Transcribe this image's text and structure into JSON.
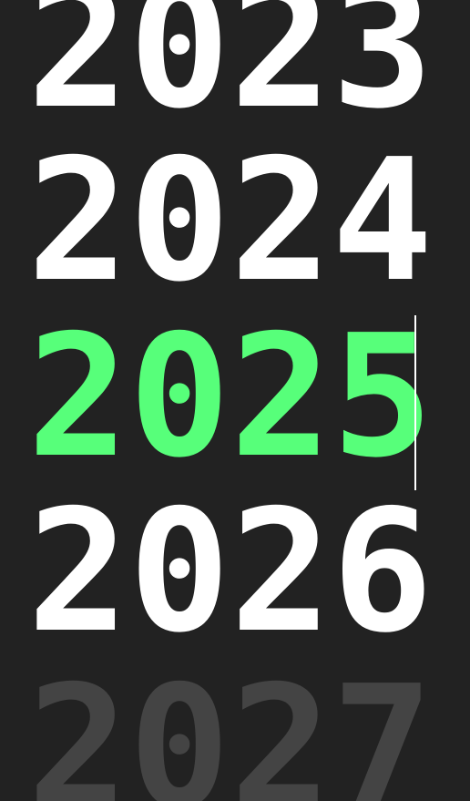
{
  "years": [
    {
      "label": "2023",
      "state": "normal"
    },
    {
      "label": "2024",
      "state": "normal"
    },
    {
      "label": "2025",
      "state": "selected"
    },
    {
      "label": "2026",
      "state": "normal"
    },
    {
      "label": "2027",
      "state": "faded"
    }
  ],
  "colors": {
    "background": "#222222",
    "normal": "#ffffff",
    "selected": "#57ff7a",
    "faded": "#444444",
    "cursor": "#ffffff"
  }
}
